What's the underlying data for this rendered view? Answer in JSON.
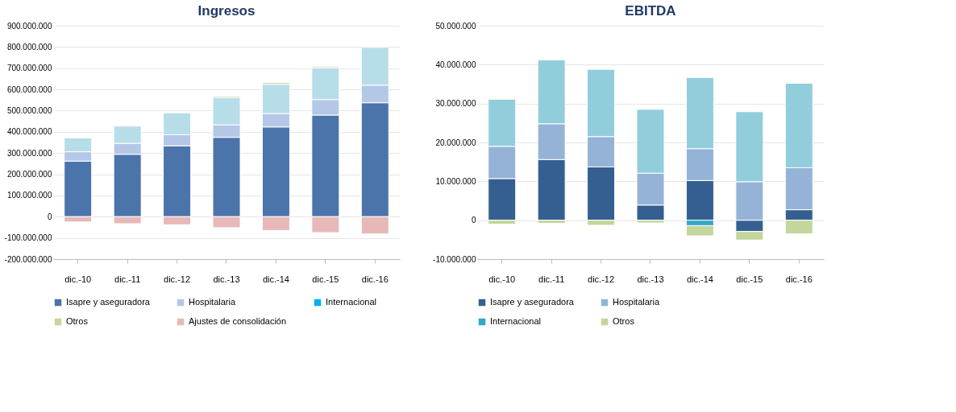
{
  "chart_data": [
    {
      "type": "bar",
      "title": "Ingresos",
      "stacked": true,
      "grid": "y",
      "legend": "bottom",
      "categories": [
        "dic.-10",
        "dic.-11",
        "dic.-12",
        "dic.-13",
        "dic.-14",
        "dic.-15",
        "dic.-16"
      ],
      "ylim": [
        -200000000,
        900000000
      ],
      "yticks": [
        {
          "value": -200000000,
          "label": "-200.000.000"
        },
        {
          "value": -100000000,
          "label": "-100.000.000"
        },
        0,
        {
          "value": 100000000,
          "label": "100.000.000"
        },
        {
          "value": 200000000,
          "label": "200.000.000"
        },
        {
          "value": 300000000,
          "label": "300.000.000"
        },
        {
          "value": 400000000,
          "label": "400.000.000"
        },
        {
          "value": 500000000,
          "label": "500.000.000"
        },
        {
          "value": 600000000,
          "label": "600.000.000"
        },
        {
          "value": 700000000,
          "label": "700.000.000"
        },
        {
          "value": 800000000,
          "label": "800.000.000"
        },
        {
          "value": 900000000,
          "label": "900.000.000"
        }
      ],
      "series": [
        {
          "name": "Isapre y aseguradora",
          "color": "#4a74aa",
          "values": [
            262000000,
            294000000,
            334000000,
            374000000,
            423000000,
            479000000,
            537000000
          ]
        },
        {
          "name": "Hospitalaria",
          "color": "#b4c7e7",
          "values": [
            44000000,
            52000000,
            52000000,
            59000000,
            63000000,
            73000000,
            83000000
          ]
        },
        {
          "color": "#b7dde8",
          "values": [
            65000000,
            81000000,
            103000000,
            129000000,
            138000000,
            149000000,
            178000000
          ]
        },
        {
          "name": "Internacional",
          "color": "#00b0f0",
          "values": [
            null,
            null,
            null,
            null,
            null,
            null,
            null
          ]
        },
        {
          "name": "Otros",
          "color": "#c3d69b",
          "values": [
            null,
            null,
            null,
            6000000,
            8000000,
            6000000,
            null
          ]
        },
        {
          "name": "Ajustes de consolidación",
          "color": "#e6b9b8",
          "values": [
            -25000000,
            -33000000,
            -38000000,
            -52000000,
            -65000000,
            -75000000,
            -81000000
          ]
        }
      ]
    },
    {
      "type": "bar",
      "title": "EBITDA",
      "stacked": true,
      "grid": "y",
      "legend": "bottom",
      "categories": [
        "dic.-10",
        "dic.-11",
        "dic.-12",
        "dic.-13",
        "dic.-14",
        "dic.-15",
        "dic.-16"
      ],
      "ylim": [
        -10000000,
        50000000
      ],
      "yticks": [
        {
          "value": -10000000,
          "label": "-10.000.000"
        },
        0,
        {
          "value": 10000000,
          "label": "10.000.000"
        },
        {
          "value": 20000000,
          "label": "20.000.000"
        },
        {
          "value": 30000000,
          "label": "30.000.000"
        },
        {
          "value": 40000000,
          "label": "40.000.000"
        },
        {
          "value": 50000000,
          "label": "50.000.000"
        }
      ],
      "series": [
        {
          "name": "Isapre y aseguradora",
          "color": "#365f91",
          "values": [
            10700000,
            15600000,
            13700000,
            3900000,
            10200000,
            -2900000,
            2700000
          ]
        },
        {
          "name": "Hospitalaria",
          "color": "#95b3d7",
          "values": [
            8300000,
            9200000,
            7800000,
            8200000,
            8200000,
            9900000,
            10800000
          ]
        },
        {
          "color": "#92cddc",
          "values": [
            12100000,
            16400000,
            17300000,
            16400000,
            18300000,
            18000000,
            21700000
          ]
        },
        {
          "name": "Internacional",
          "color": "#31a9c8",
          "values": [
            null,
            null,
            null,
            null,
            -1400000,
            null,
            null
          ]
        },
        {
          "name": "Otros",
          "color": "#c3d69b",
          "values": [
            -1000000,
            -800000,
            -1300000,
            -700000,
            -2600000,
            -2200000,
            -3500000
          ]
        }
      ]
    }
  ]
}
